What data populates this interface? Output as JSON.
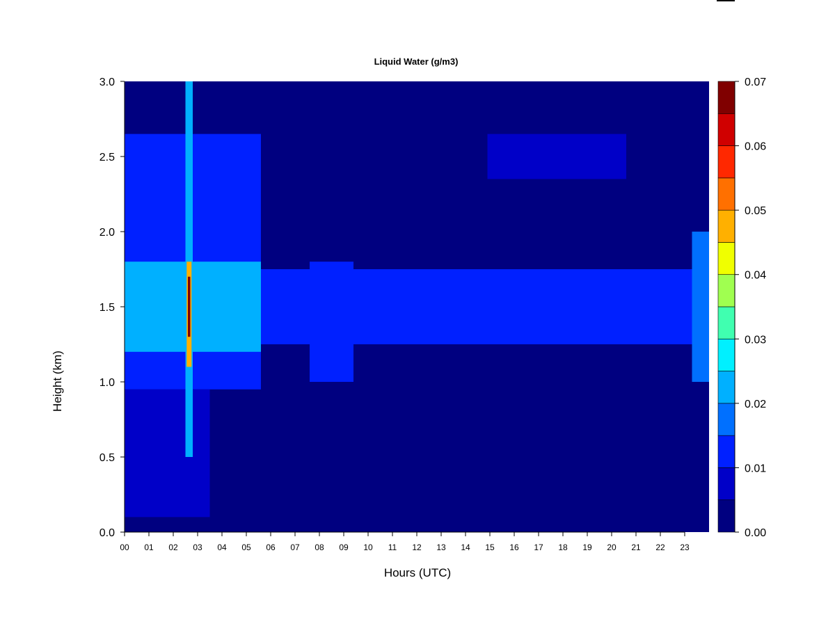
{
  "chart_data": {
    "type": "heatmap",
    "title": "Liquid Water (g/m3)",
    "xlabel": "Hours (UTC)",
    "ylabel": "Height (km)",
    "xlim": [
      0,
      24
    ],
    "ylim": [
      0.0,
      3.0
    ],
    "x_tick_labels": [
      "00",
      "01",
      "02",
      "03",
      "04",
      "05",
      "06",
      "07",
      "08",
      "09",
      "10",
      "11",
      "12",
      "13",
      "14",
      "15",
      "16",
      "17",
      "18",
      "19",
      "20",
      "21",
      "22",
      "23"
    ],
    "y_tick_labels": [
      "0.0",
      "0.5",
      "1.0",
      "1.5",
      "2.0",
      "2.5",
      "3.0"
    ],
    "colorbar": {
      "levels": [
        0.0,
        0.005,
        0.01,
        0.015,
        0.02,
        0.025,
        0.03,
        0.035,
        0.04,
        0.045,
        0.05,
        0.055,
        0.06,
        0.065,
        0.07
      ],
      "colors": [
        "#000080",
        "#0000c8",
        "#0020ff",
        "#0070ff",
        "#00b0ff",
        "#00f0ff",
        "#40ffb0",
        "#a0ff50",
        "#f0ff00",
        "#ffb000",
        "#ff7000",
        "#ff2800",
        "#d00000",
        "#800000"
      ],
      "tick_labels": [
        "0.00",
        "0.01",
        "0.02",
        "0.03",
        "0.04",
        "0.05",
        "0.06",
        "0.07"
      ]
    },
    "background_level": 0.0,
    "cloud_layers": [
      {
        "x": [
          0.0,
          5.6
        ],
        "y": [
          0.95,
          2.65
        ],
        "value": 0.012
      },
      {
        "x": [
          0.0,
          5.6
        ],
        "y": [
          1.2,
          1.8
        ],
        "value": 0.022
      },
      {
        "x": [
          0.0,
          3.5
        ],
        "y": [
          0.1,
          0.95
        ],
        "value": 0.007
      },
      {
        "x": [
          2.5,
          2.8
        ],
        "y": [
          0.5,
          3.0
        ],
        "value": 0.022
      },
      {
        "x": [
          2.55,
          2.75
        ],
        "y": [
          1.1,
          1.8
        ],
        "value": 0.045
      },
      {
        "x": [
          2.6,
          2.7
        ],
        "y": [
          1.3,
          1.7
        ],
        "value": 0.065
      },
      {
        "x": [
          5.6,
          24.0
        ],
        "y": [
          1.25,
          1.75
        ],
        "value": 0.01
      },
      {
        "x": [
          7.6,
          9.4
        ],
        "y": [
          1.0,
          1.8
        ],
        "value": 0.013
      },
      {
        "x": [
          14.9,
          20.6
        ],
        "y": [
          2.35,
          2.65
        ],
        "value": 0.008
      },
      {
        "x": [
          23.3,
          24.0
        ],
        "y": [
          1.0,
          2.0
        ],
        "value": 0.015
      }
    ]
  }
}
